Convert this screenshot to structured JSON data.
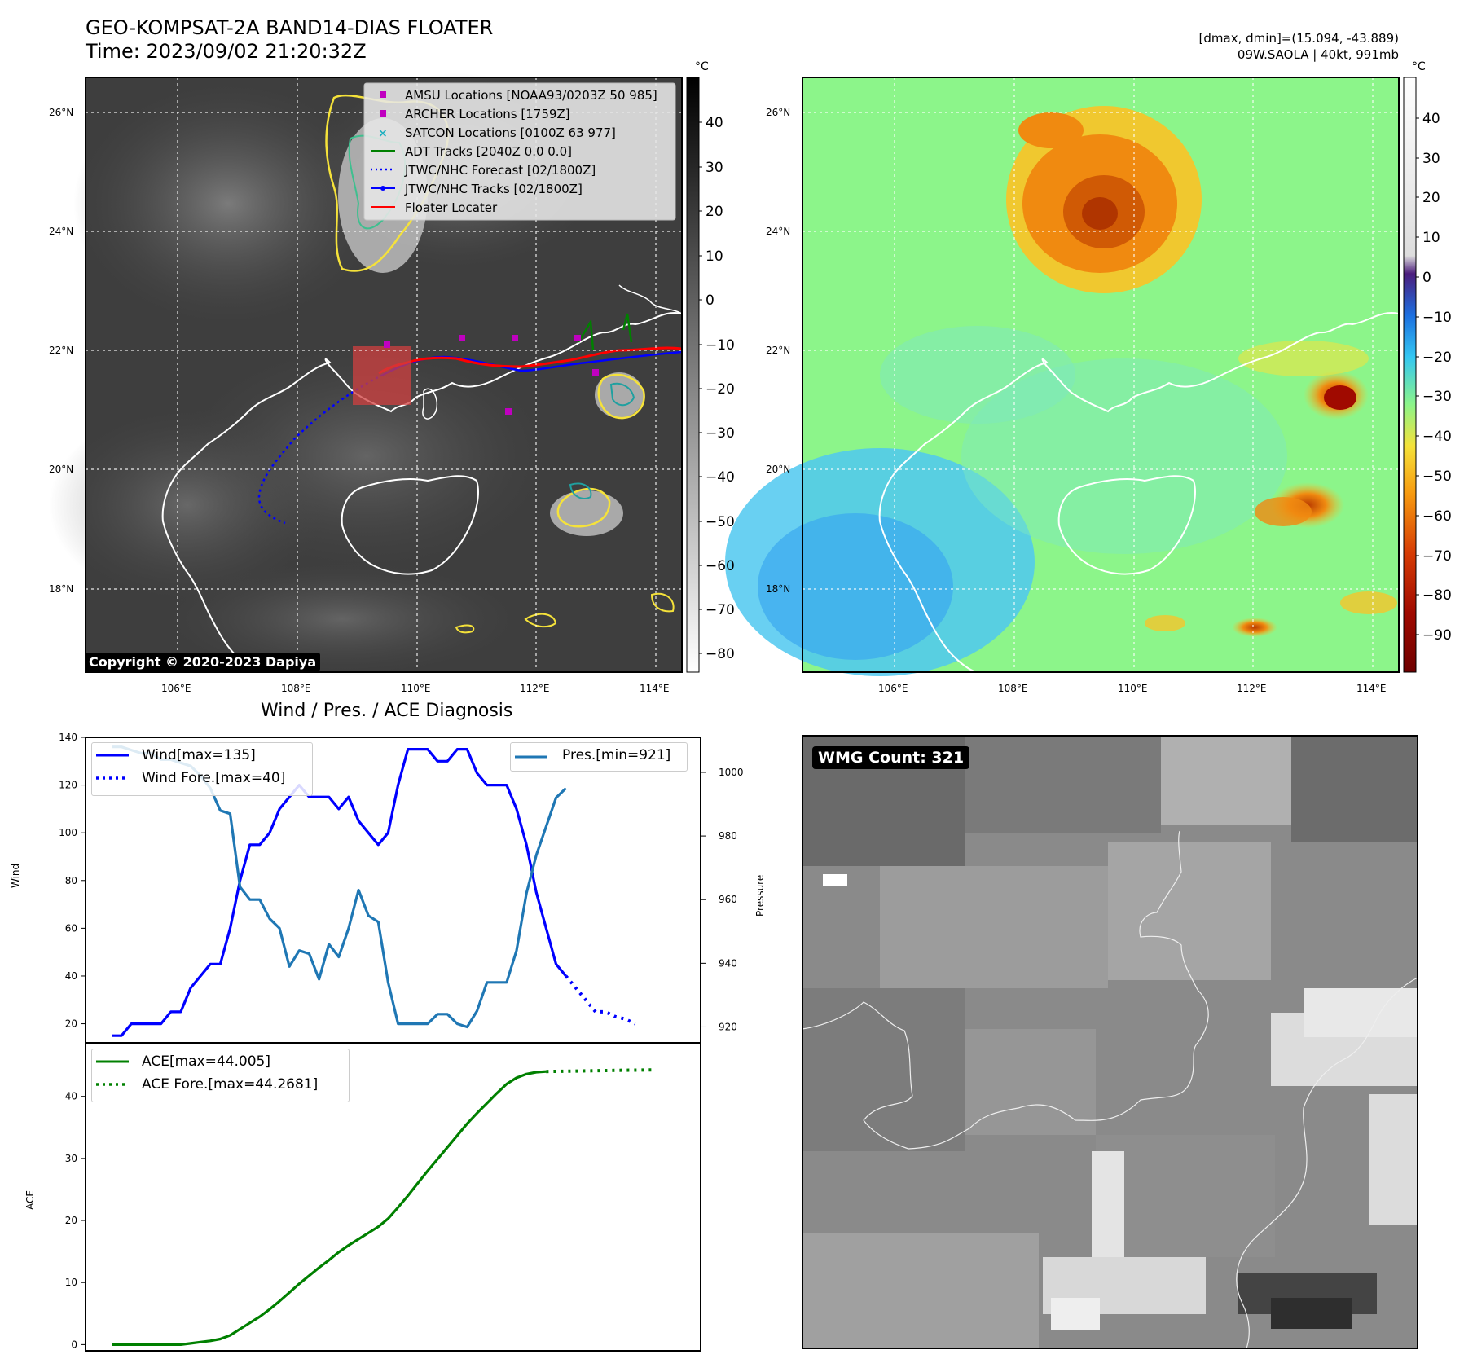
{
  "header": {
    "title_line1": "GEO-KOMPSAT-2A BAND14-DIAS FLOATER",
    "title_line2": "Time: 2023/09/02 21:20:32Z",
    "right_line1": "[dmax, dmin]=(15.094, -43.889)",
    "right_line2": "09W.SAOLA | 40kt, 991mb"
  },
  "map_ir": {
    "lat_ticks": [
      "26°N",
      "24°N",
      "22°N",
      "20°N",
      "18°N"
    ],
    "lon_ticks": [
      "106°E",
      "108°E",
      "110°E",
      "112°E",
      "114°E"
    ],
    "colorbar_unit": "°C",
    "colorbar_ticks": [
      "40",
      "30",
      "20",
      "10",
      "0",
      "−10",
      "−20",
      "−30",
      "−40",
      "−50",
      "−60",
      "−70",
      "−80"
    ],
    "copyright": "Copyright © 2020-2023 Dapiya",
    "legend": [
      {
        "label": "AMSU Locations [NOAA93/0203Z 50 985]",
        "symbol": "square",
        "color": "#c000c0"
      },
      {
        "label": "ARCHER Locations [1759Z]",
        "symbol": "square",
        "color": "#c000c0"
      },
      {
        "label": "SATCON Locations [0100Z 63 977]",
        "symbol": "x",
        "color": "#20b0c0"
      },
      {
        "label": "ADT Tracks [2040Z 0.0 0.0]",
        "symbol": "line",
        "color": "#008000"
      },
      {
        "label": "JTWC/NHC Forecast [02/1800Z]",
        "symbol": "dotted",
        "color": "#0000ff"
      },
      {
        "label": "JTWC/NHC Tracks [02/1800Z]",
        "symbol": "line-dot",
        "color": "#0000ff"
      },
      {
        "label": "Floater Locater",
        "symbol": "line",
        "color": "#ff0000"
      }
    ]
  },
  "map_color": {
    "lat_ticks": [
      "26°N",
      "24°N",
      "22°N",
      "20°N",
      "18°N"
    ],
    "lon_ticks": [
      "106°E",
      "108°E",
      "110°E",
      "112°E",
      "114°E"
    ],
    "colorbar_unit": "°C",
    "colorbar_ticks": [
      "40",
      "30",
      "20",
      "10",
      "0",
      "−10",
      "−20",
      "−30",
      "−40",
      "−50",
      "−60",
      "−70",
      "−80",
      "−90"
    ]
  },
  "wmg_panel": {
    "label": "WMG Count: 321"
  },
  "chart_data": [
    {
      "type": "line",
      "title": "Wind / Pres. / ACE Diagnosis",
      "ylabel": "Wind",
      "ylabel_right": "Pressure",
      "ylim": [
        12,
        140
      ],
      "ylim_right": [
        915,
        1011
      ],
      "yticks": [
        "20",
        "40",
        "60",
        "80",
        "100",
        "120",
        "140"
      ],
      "yticks_right": [
        "920",
        "940",
        "960",
        "980",
        "1000"
      ],
      "legend_left": [
        "Wind[max=135]",
        "Wind Fore.[max=40]"
      ],
      "legend_right": [
        "Pres.[min=921]"
      ],
      "series": [
        {
          "name": "Wind[max=135]",
          "color": "#0000ff",
          "style": "solid",
          "values": [
            15,
            15,
            20,
            20,
            20,
            20,
            25,
            25,
            35,
            40,
            45,
            45,
            60,
            80,
            95,
            95,
            100,
            110,
            115,
            120,
            115,
            115,
            115,
            110,
            115,
            105,
            100,
            95,
            100,
            120,
            135,
            135,
            135,
            130,
            130,
            135,
            135,
            125,
            120,
            120,
            120,
            110,
            95,
            75,
            60,
            45,
            40
          ]
        },
        {
          "name": "Wind Fore.[max=40]",
          "color": "#0000ff",
          "style": "dotted",
          "values": [
            40,
            35,
            30,
            25,
            25,
            23,
            22,
            20
          ],
          "start_index": 46
        },
        {
          "name": "Pres.[min=921]",
          "color": "#1f77b4",
          "style": "solid",
          "axis": "right",
          "values": [
            1008,
            1008,
            1007,
            1006,
            1006,
            1004,
            1004,
            1003,
            1002,
            999,
            995,
            988,
            987,
            964,
            960,
            960,
            954,
            951,
            939,
            944,
            943,
            935,
            946,
            942,
            951,
            963,
            955,
            953,
            934,
            921,
            921,
            921,
            921,
            924,
            924,
            921,
            920,
            925,
            934,
            934,
            934,
            944,
            962,
            974,
            983,
            992,
            995
          ]
        }
      ]
    },
    {
      "type": "line",
      "ylabel": "ACE",
      "ylim": [
        -1,
        46
      ],
      "yticks": [
        "0",
        "10",
        "20",
        "30",
        "40"
      ],
      "legend": [
        "ACE[max=44.005]",
        "ACE Fore.[max=44.2681]"
      ],
      "series": [
        {
          "name": "ACE[max=44.005]",
          "color": "#008000",
          "style": "solid",
          "values": [
            0,
            0,
            0,
            0,
            0,
            0,
            0,
            0,
            0.2,
            0.4,
            0.6,
            0.9,
            1.5,
            2.5,
            3.5,
            4.5,
            5.7,
            7.0,
            8.4,
            9.8,
            11.1,
            12.4,
            13.6,
            14.9,
            16.0,
            17.0,
            18.0,
            19.0,
            20.3,
            22.1,
            24.0,
            26.0,
            28.0,
            29.9,
            31.8,
            33.7,
            35.6,
            37.3,
            38.9,
            40.5,
            42.0,
            43.0,
            43.6,
            43.9,
            44.0
          ]
        },
        {
          "name": "ACE Fore.[max=44.2681]",
          "color": "#008000",
          "style": "dotted",
          "values": [
            44.0,
            44.1,
            44.2,
            44.27
          ],
          "start_index": 44
        }
      ]
    }
  ]
}
